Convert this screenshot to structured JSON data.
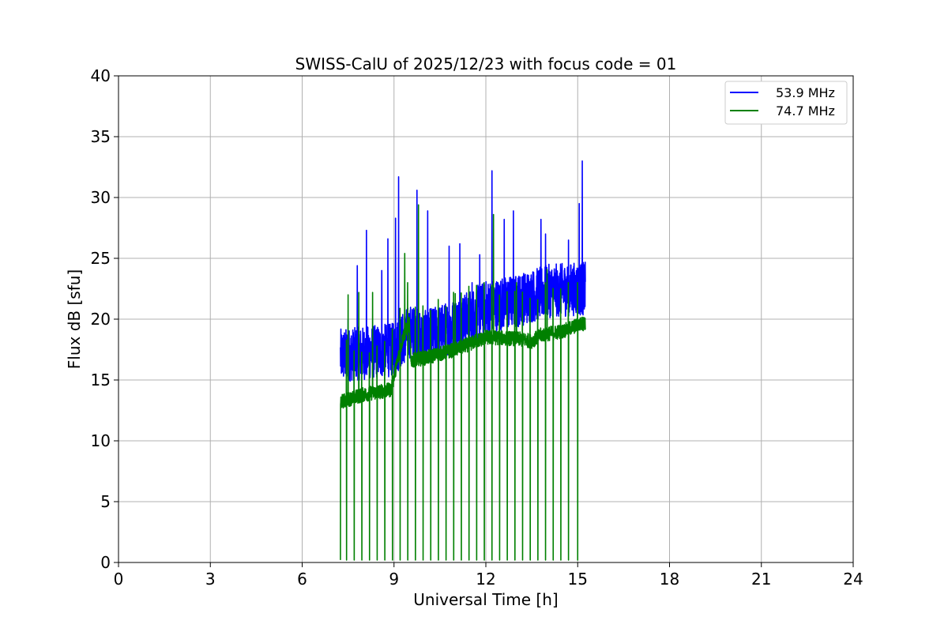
{
  "chart_data": {
    "type": "line",
    "title": "SWISS-CalU of 2025/12/23 with focus code = 01",
    "xlabel": "Universal Time [h]",
    "ylabel": "Flux dB [sfu]",
    "xlim": [
      0,
      24
    ],
    "ylim": [
      0,
      40
    ],
    "xticks": [
      0,
      3,
      6,
      9,
      12,
      15,
      18,
      21,
      24
    ],
    "yticks": [
      0,
      5,
      10,
      15,
      20,
      25,
      30,
      35,
      40
    ],
    "grid": true,
    "legend_position": "top-right",
    "series": [
      {
        "name": "53.9 MHz",
        "color": "#0000ff",
        "baseline": [
          [
            7.25,
            17.0
          ],
          [
            8.0,
            17.2
          ],
          [
            9.0,
            17.5
          ],
          [
            9.5,
            19.0
          ],
          [
            10.0,
            18.5
          ],
          [
            11.0,
            19.5
          ],
          [
            12.0,
            21.0
          ],
          [
            13.0,
            21.5
          ],
          [
            14.0,
            22.3
          ],
          [
            15.0,
            22.5
          ],
          [
            15.25,
            22.5
          ]
        ],
        "spikes": [
          [
            7.5,
            20.0
          ],
          [
            7.8,
            24.4
          ],
          [
            8.1,
            27.3
          ],
          [
            8.6,
            24.0
          ],
          [
            8.8,
            26.6
          ],
          [
            9.05,
            28.3
          ],
          [
            9.15,
            31.7
          ],
          [
            9.75,
            30.6
          ],
          [
            10.1,
            28.9
          ],
          [
            10.8,
            26.0
          ],
          [
            11.15,
            26.2
          ],
          [
            11.55,
            23.0
          ],
          [
            11.8,
            25.3
          ],
          [
            12.2,
            32.2
          ],
          [
            12.6,
            28.2
          ],
          [
            12.9,
            28.9
          ],
          [
            13.2,
            23.5
          ],
          [
            13.55,
            23.0
          ],
          [
            13.8,
            28.2
          ],
          [
            13.95,
            27.0
          ],
          [
            14.35,
            23.0
          ],
          [
            14.7,
            26.5
          ],
          [
            15.05,
            29.5
          ],
          [
            15.15,
            33.0
          ]
        ]
      },
      {
        "name": "74.7 MHz",
        "color": "#008000",
        "baseline": [
          [
            7.25,
            13.2
          ],
          [
            8.0,
            13.8
          ],
          [
            8.9,
            14.2
          ],
          [
            9.3,
            18.6
          ],
          [
            9.5,
            19.6
          ],
          [
            9.55,
            16.6
          ],
          [
            10.0,
            16.8
          ],
          [
            11.0,
            17.5
          ],
          [
            12.0,
            18.5
          ],
          [
            13.0,
            18.4
          ],
          [
            13.5,
            18.2
          ],
          [
            13.8,
            18.7
          ],
          [
            14.5,
            19.0
          ],
          [
            15.0,
            19.5
          ],
          [
            15.25,
            19.7
          ]
        ],
        "spikes": [
          [
            7.5,
            22.0
          ],
          [
            7.85,
            22.2
          ],
          [
            8.3,
            22.2
          ],
          [
            9.2,
            22.3
          ],
          [
            9.35,
            25.4
          ],
          [
            9.8,
            29.4
          ],
          [
            11.0,
            22.1
          ],
          [
            12.25,
            28.6
          ],
          [
            13.0,
            23.0
          ],
          [
            14.0,
            24.1
          ],
          [
            15.0,
            21.6
          ]
        ],
        "dropout_times": [
          7.2,
          7.45,
          7.7,
          7.95,
          8.2,
          8.45,
          8.7,
          8.95,
          9.2,
          9.45,
          9.7,
          9.95,
          10.2,
          10.45,
          10.7,
          10.95,
          11.2,
          11.45,
          11.7,
          11.95,
          12.2,
          12.45,
          12.7,
          12.95,
          13.2,
          13.45,
          13.7,
          13.95,
          14.2,
          14.45,
          14.7,
          15.0
        ]
      }
    ]
  }
}
